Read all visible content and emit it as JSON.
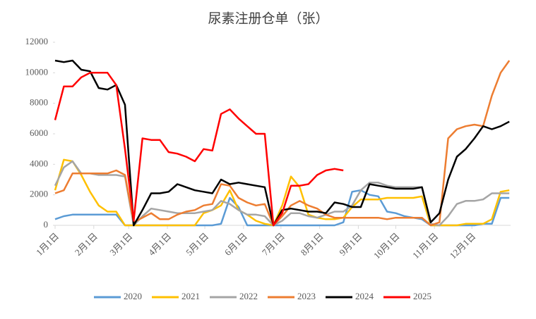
{
  "chart_data": {
    "type": "line",
    "title": "尿素注册仓单（张）",
    "x": [
      1,
      8,
      15,
      22,
      29,
      36,
      43,
      50,
      57,
      64,
      71,
      78,
      85,
      92,
      99,
      106,
      113,
      120,
      127,
      134,
      141,
      148,
      155,
      162,
      169,
      176,
      183,
      190,
      197,
      204,
      211,
      218,
      225,
      232,
      239,
      246,
      253,
      260,
      267,
      274,
      281,
      288,
      295,
      302,
      309,
      316,
      323,
      330,
      337,
      344,
      351,
      358,
      365
    ],
    "xlim": [
      1,
      366
    ],
    "xticks": [
      {
        "value": 1,
        "label": "1月1日"
      },
      {
        "value": 32,
        "label": "2月1日"
      },
      {
        "value": 60,
        "label": "3月1日"
      },
      {
        "value": 91,
        "label": "4月1日"
      },
      {
        "value": 121,
        "label": "5月1日"
      },
      {
        "value": 152,
        "label": "6月1日"
      },
      {
        "value": 182,
        "label": "7月1日"
      },
      {
        "value": 213,
        "label": "8月1日"
      },
      {
        "value": 244,
        "label": "9月1日"
      },
      {
        "value": 274,
        "label": "10月1日"
      },
      {
        "value": 305,
        "label": "11月1日"
      },
      {
        "value": 335,
        "label": "12月1日"
      }
    ],
    "ylim": [
      0,
      12000
    ],
    "yticks": [
      0,
      2000,
      4000,
      6000,
      8000,
      10000,
      12000
    ],
    "legend": "bottom",
    "series": [
      {
        "name": "2020",
        "color": "#5b9bd5",
        "values": [
          400,
          600,
          700,
          700,
          700,
          700,
          700,
          700,
          0,
          0,
          0,
          0,
          0,
          0,
          0,
          0,
          0,
          0,
          0,
          100,
          1800,
          1200,
          0,
          0,
          0,
          0,
          0,
          0,
          0,
          0,
          0,
          0,
          0,
          200,
          2200,
          2300,
          2000,
          1900,
          900,
          800,
          600,
          500,
          400,
          0,
          0,
          0,
          0,
          0,
          0,
          100,
          100,
          1800,
          1800
        ]
      },
      {
        "name": "2021",
        "color": "#ffc000",
        "values": [
          2300,
          4300,
          4200,
          3300,
          2200,
          1300,
          900,
          900,
          0,
          0,
          0,
          0,
          0,
          0,
          0,
          0,
          0,
          800,
          1000,
          1300,
          2300,
          1000,
          700,
          300,
          100,
          0,
          1300,
          3200,
          2500,
          700,
          500,
          400,
          400,
          500,
          1200,
          1700,
          1700,
          1700,
          1800,
          1800,
          1800,
          1800,
          1900,
          0,
          0,
          0,
          0,
          100,
          100,
          100,
          400,
          2200,
          2300
        ]
      },
      {
        "name": "2022",
        "color": "#a5a5a5",
        "values": [
          2600,
          3800,
          4200,
          3400,
          3400,
          3300,
          3300,
          3300,
          3200,
          0,
          600,
          1100,
          1000,
          900,
          800,
          800,
          800,
          900,
          1000,
          1600,
          1400,
          1000,
          700,
          700,
          600,
          0,
          300,
          800,
          800,
          600,
          500,
          700,
          900,
          900,
          1300,
          2300,
          2800,
          2800,
          2600,
          2500,
          2500,
          2500,
          2500,
          100,
          0,
          600,
          1400,
          1600,
          1600,
          1700,
          2100,
          2100,
          2100
        ]
      },
      {
        "name": "2023",
        "color": "#ed7d31",
        "values": [
          2100,
          2300,
          3400,
          3400,
          3400,
          3400,
          3400,
          3600,
          3300,
          200,
          500,
          800,
          400,
          400,
          700,
          900,
          1000,
          1300,
          1400,
          2700,
          2600,
          1800,
          1500,
          1300,
          1400,
          0,
          600,
          1300,
          1600,
          1300,
          1100,
          700,
          500,
          500,
          500,
          500,
          500,
          500,
          400,
          500,
          500,
          500,
          500,
          0,
          200,
          5700,
          6300,
          6500,
          6600,
          6500,
          8500,
          10000,
          10800
        ]
      },
      {
        "name": "2024",
        "color": "#000000",
        "values": [
          10800,
          10700,
          10800,
          10200,
          10100,
          9000,
          8900,
          9200,
          7900,
          0,
          1000,
          2100,
          2100,
          2200,
          2700,
          2500,
          2300,
          2200,
          2100,
          3000,
          2700,
          2800,
          2700,
          2600,
          2500,
          0,
          1000,
          1100,
          1000,
          900,
          900,
          800,
          1500,
          1400,
          1200,
          1200,
          2700,
          2600,
          2500,
          2400,
          2400,
          2400,
          2500,
          200,
          800,
          3000,
          4500,
          5000,
          5700,
          6500,
          6300,
          6500,
          6800
        ]
      },
      {
        "name": "2025",
        "color": "#ff0000",
        "values": [
          6900,
          9100,
          9100,
          9700,
          10000,
          10000,
          10000,
          9200,
          5000,
          300,
          5700,
          5600,
          5600,
          4800,
          4700,
          4500,
          4200,
          5000,
          4900,
          7300,
          7600,
          7000,
          6500,
          6000,
          6000,
          0,
          800,
          2600,
          2600,
          2700,
          3300,
          3600,
          3700,
          3600,
          null,
          null,
          null,
          null,
          null,
          null,
          null,
          null,
          null,
          null,
          null,
          null,
          null,
          null,
          null,
          null,
          null,
          null,
          null
        ]
      }
    ]
  }
}
